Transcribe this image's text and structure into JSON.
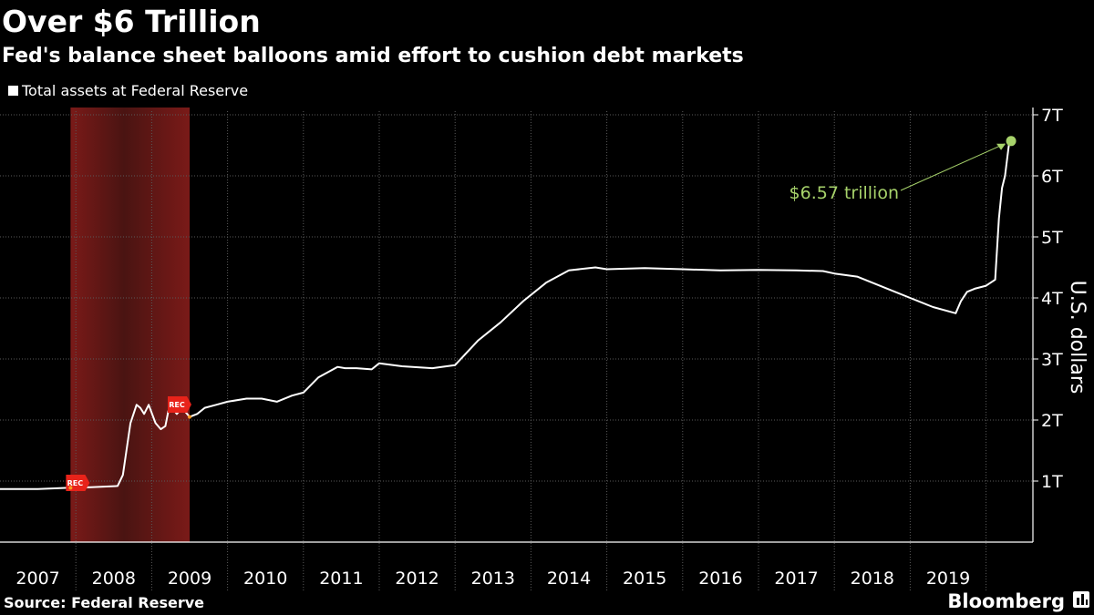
{
  "chart_data": {
    "type": "line",
    "title": "Over $6 Trillion",
    "subtitle": "Fed's balance sheet balloons amid effort to cushion debt markets",
    "legend": [
      "Total assets at Federal Reserve"
    ],
    "ylabel": "U.S. dollars",
    "xlabel": "",
    "ylim": [
      0,
      7
    ],
    "xlim": [
      2007.0,
      2020.45
    ],
    "x_ticks": [
      2007,
      2008,
      2009,
      2010,
      2011,
      2012,
      2013,
      2014,
      2015,
      2016,
      2017,
      2018,
      2019
    ],
    "x_tick_labels": [
      "2007",
      "2008",
      "2009",
      "2010",
      "2011",
      "2012",
      "2013",
      "2014",
      "2015",
      "2016",
      "2017",
      "2018",
      "2019"
    ],
    "y_ticks": [
      1,
      2,
      3,
      4,
      5,
      6,
      7
    ],
    "y_tick_labels": [
      "1T",
      "2T",
      "3T",
      "4T",
      "5T",
      "6T",
      "7T"
    ],
    "recession": {
      "start": 2007.93,
      "end": 2009.5,
      "marker_label": "REC"
    },
    "series": [
      {
        "name": "Total assets at Federal Reserve",
        "x": [
          2007.0,
          2007.5,
          2007.9,
          2008.2,
          2008.55,
          2008.62,
          2008.72,
          2008.8,
          2008.85,
          2008.9,
          2008.96,
          2009.05,
          2009.12,
          2009.18,
          2009.22,
          2009.27,
          2009.33,
          2009.4,
          2009.5,
          2009.6,
          2009.7,
          2009.85,
          2010.0,
          2010.25,
          2010.45,
          2010.65,
          2010.85,
          2011.0,
          2011.2,
          2011.45,
          2011.55,
          2011.7,
          2011.9,
          2012.0,
          2012.3,
          2012.7,
          2013.0,
          2013.3,
          2013.6,
          2013.9,
          2014.2,
          2014.5,
          2014.85,
          2015.0,
          2015.5,
          2016.0,
          2016.5,
          2017.0,
          2017.5,
          2017.85,
          2018.0,
          2018.3,
          2018.7,
          2019.0,
          2019.3,
          2019.6,
          2019.67,
          2019.75,
          2019.85,
          2020.0,
          2020.12,
          2020.17,
          2020.21,
          2020.25,
          2020.28,
          2020.3,
          2020.33
        ],
        "values": [
          0.87,
          0.87,
          0.89,
          0.9,
          0.92,
          1.1,
          1.95,
          2.25,
          2.2,
          2.1,
          2.25,
          1.95,
          1.85,
          1.9,
          2.15,
          2.2,
          2.1,
          2.2,
          2.05,
          2.1,
          2.2,
          2.25,
          2.3,
          2.35,
          2.35,
          2.3,
          2.4,
          2.45,
          2.7,
          2.87,
          2.85,
          2.85,
          2.83,
          2.93,
          2.88,
          2.85,
          2.9,
          3.3,
          3.6,
          3.95,
          4.25,
          4.45,
          4.5,
          4.47,
          4.49,
          4.47,
          4.45,
          4.46,
          4.45,
          4.44,
          4.4,
          4.35,
          4.15,
          4.0,
          3.85,
          3.75,
          3.95,
          4.1,
          4.15,
          4.2,
          4.3,
          5.3,
          5.8,
          6.0,
          6.3,
          6.5,
          6.57
        ]
      }
    ],
    "annotations": [
      {
        "text": "$6.57 trillion",
        "x": 2020.33,
        "y": 6.57
      }
    ],
    "source": "Source: Federal Reserve",
    "brand": "Bloomberg",
    "colors": {
      "background": "#000000",
      "line": "#ffffff",
      "text": "#ffffff",
      "grid": "#5a5a5a",
      "highlight": "#a7d36b",
      "recession_dark": "#4a1412",
      "recession_light": "#7a1a18",
      "rec_marker": "#e8231a"
    }
  }
}
